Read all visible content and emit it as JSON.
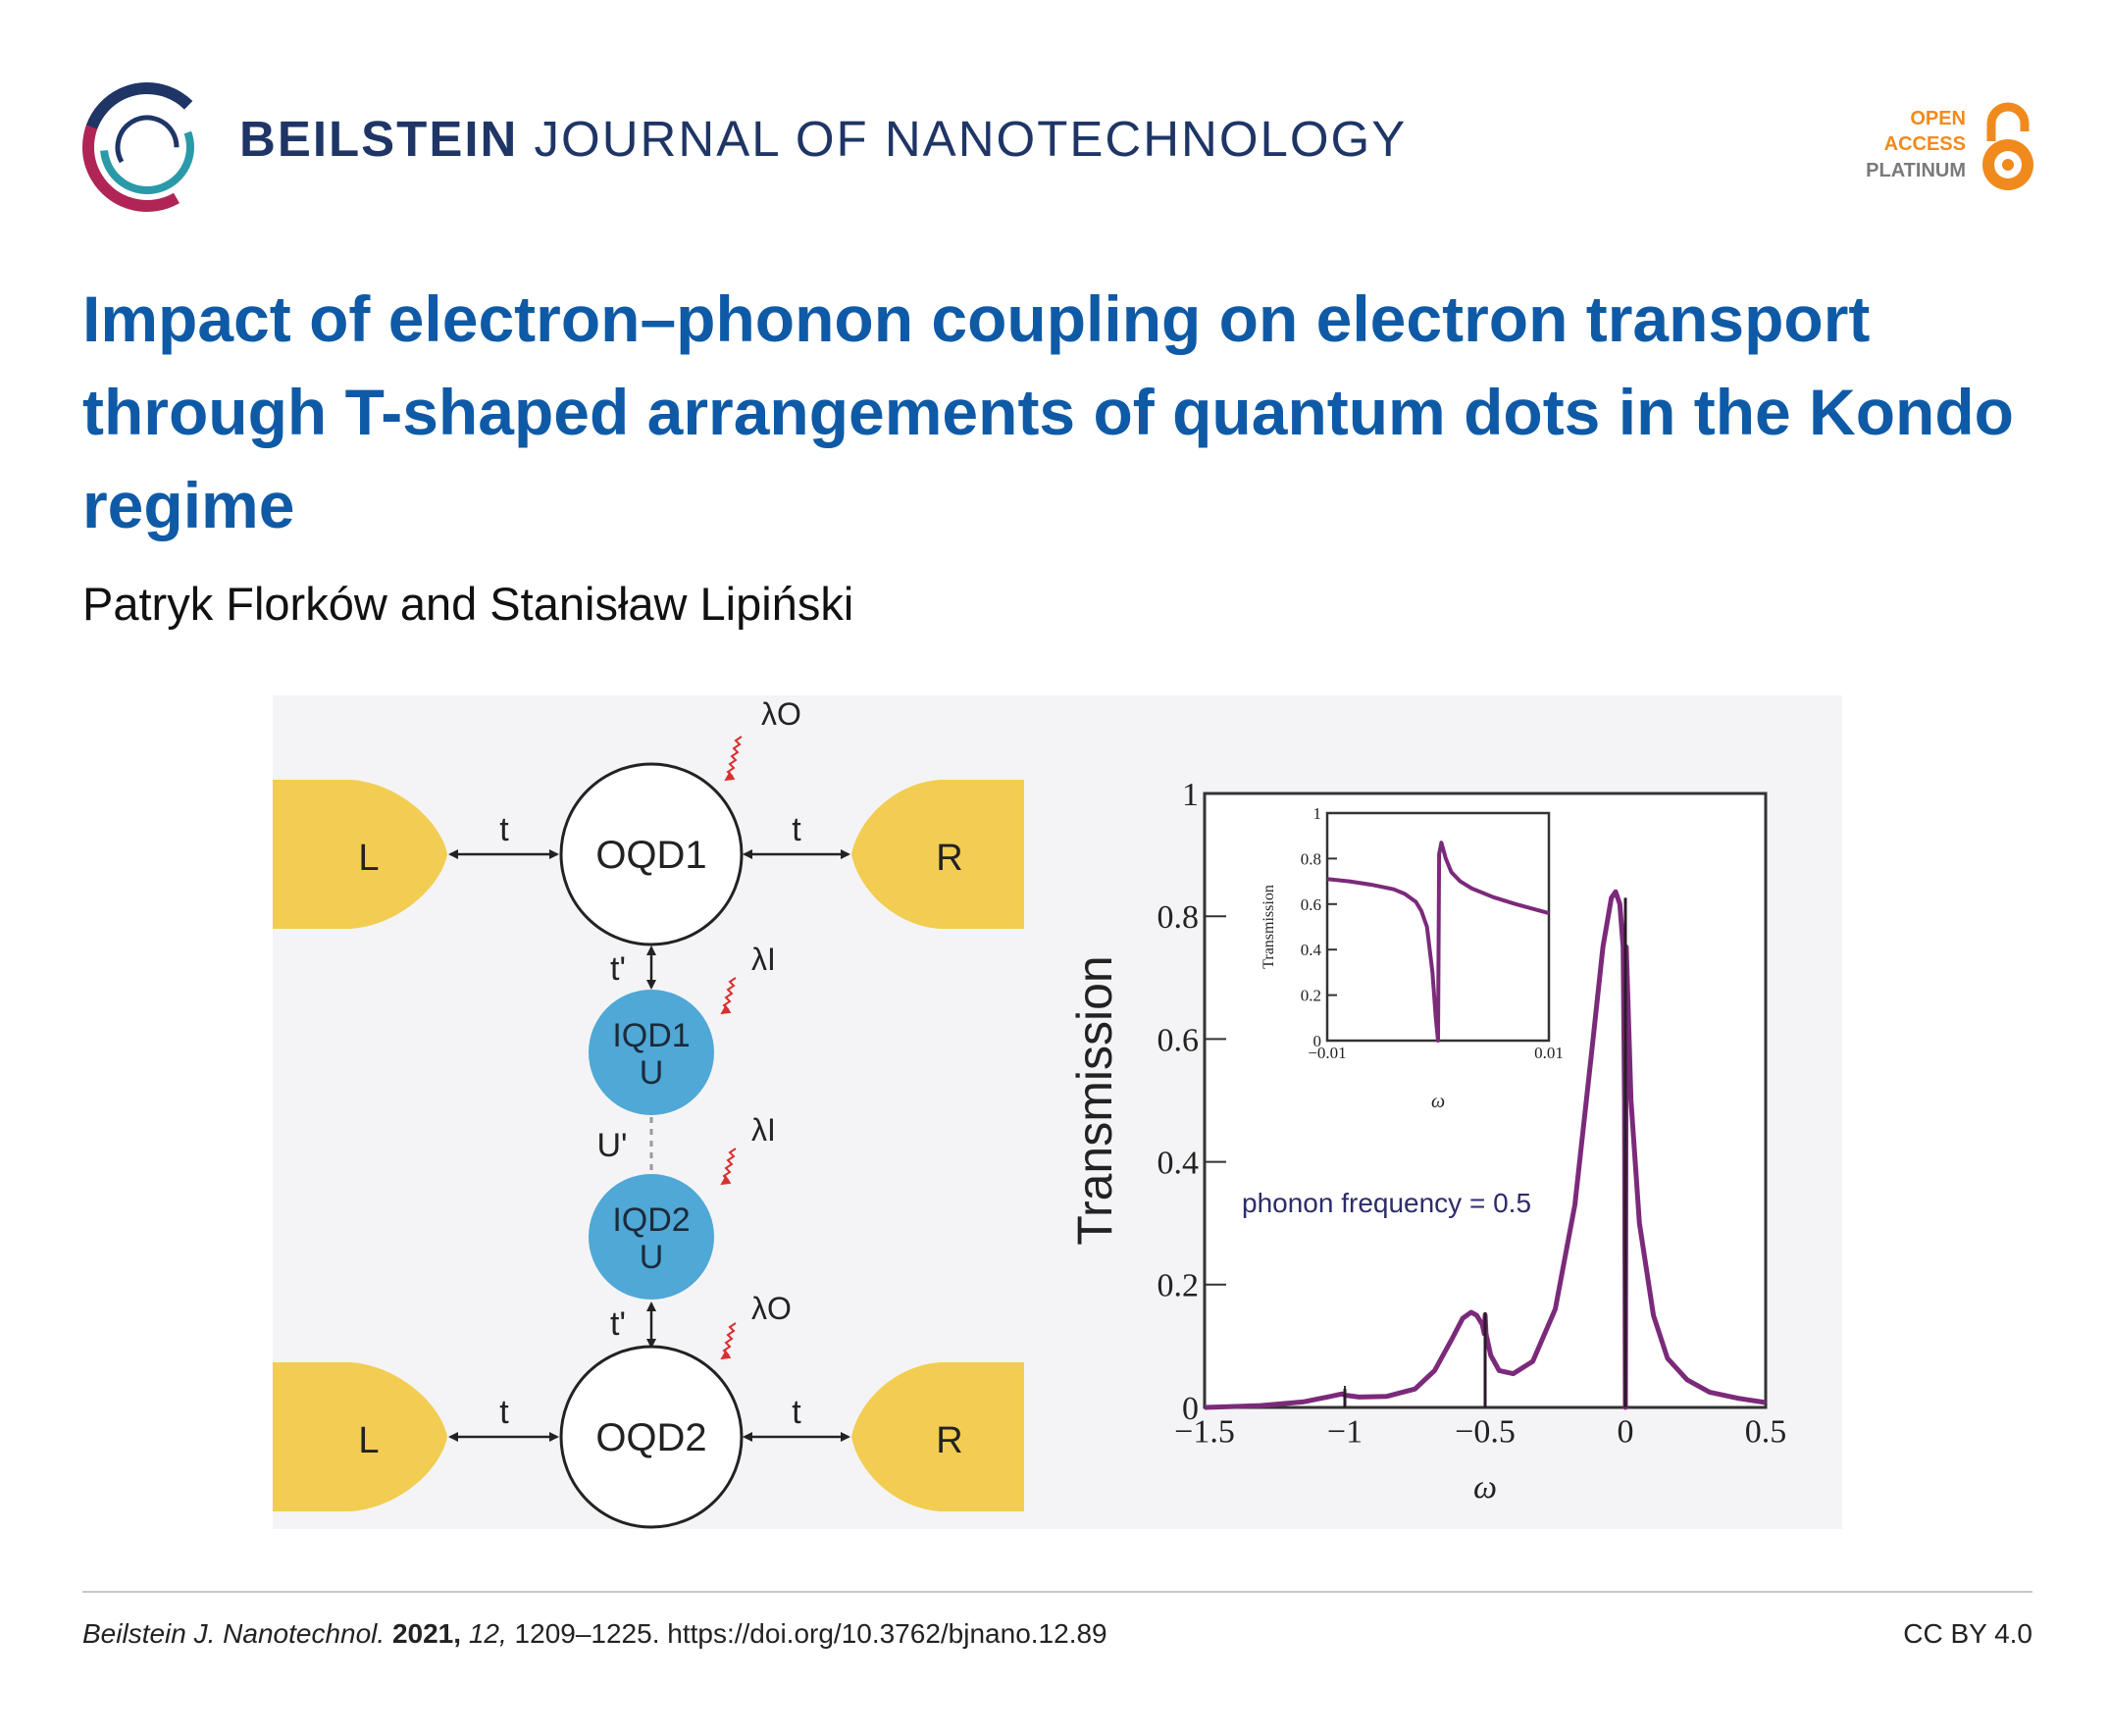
{
  "header": {
    "journal_bold": "BEILSTEIN",
    "journal_rest": "JOURNAL OF NANOTECHNOLOGY",
    "oa_line1": "OPEN",
    "oa_line2": "ACCESS",
    "oa_line3": "PLATINUM",
    "colors": {
      "navy": "#1e3566",
      "title_blue": "#0f5aa6",
      "orange": "#f08a1d"
    }
  },
  "article": {
    "title": "Impact of electron–phonon coupling on electron transport through T-shaped arrangements of quantum dots in the Kondo regime",
    "authors": "Patryk Florków and Stanisław Lipiński"
  },
  "figure": {
    "diagram": {
      "lead_left": "L",
      "lead_right": "R",
      "outer_dot_1": "OQD1",
      "outer_dot_2": "OQD2",
      "inner_dot_1": "IQD1",
      "inner_dot_2": "IQD2",
      "inner_u": "U",
      "inter_u": "U'",
      "hop_t": "t",
      "hop_tp": "t'",
      "lambda_o": "λO",
      "lambda_i": "λI"
    },
    "chart": {
      "ylabel": "Transmission",
      "xlabel": "ω",
      "xticks": [
        "−1.5",
        "−1",
        "−0.5",
        "0",
        "0.5"
      ],
      "yticks": [
        "0",
        "0.2",
        "0.4",
        "0.6",
        "0.8",
        "1"
      ],
      "annotation": "phonon frequency = 0.5",
      "inset": {
        "ylabel": "Transmission",
        "xlabel": "ω",
        "xticks": [
          "−0.01",
          "0.01"
        ],
        "yticks": [
          "0",
          "0.2",
          "0.4",
          "0.6",
          "0.8",
          "1"
        ]
      }
    }
  },
  "chart_data": [
    {
      "type": "line",
      "xlabel": "ω",
      "ylabel": "Transmission",
      "xlim": [
        -1.5,
        0.5
      ],
      "ylim": [
        0,
        1
      ],
      "annotations": [
        "phonon frequency = 0.5"
      ],
      "line_color": "#7b2a7a",
      "series": [
        {
          "x": [
            -1.5,
            -1.3,
            -1.15,
            -1.05,
            -1.01,
            -1.0,
            -0.95,
            -0.85,
            -0.75,
            -0.68,
            -0.62,
            -0.58,
            -0.55,
            -0.53,
            -0.51,
            -0.503,
            -0.5,
            -0.497,
            -0.48,
            -0.45,
            -0.4,
            -0.33,
            -0.25,
            -0.18,
            -0.12,
            -0.08,
            -0.05,
            -0.035,
            -0.02,
            -0.008,
            -0.003,
            0.0,
            0.003,
            0.02,
            0.05,
            0.1,
            0.15,
            0.22,
            0.3,
            0.4,
            0.5
          ],
          "y": [
            0.0,
            0.003,
            0.009,
            0.018,
            0.022,
            0.02,
            0.017,
            0.018,
            0.03,
            0.06,
            0.11,
            0.145,
            0.155,
            0.15,
            0.135,
            0.12,
            0.15,
            0.12,
            0.085,
            0.06,
            0.055,
            0.075,
            0.16,
            0.33,
            0.58,
            0.75,
            0.83,
            0.84,
            0.82,
            0.75,
            0.5,
            0.0,
            0.75,
            0.5,
            0.3,
            0.15,
            0.08,
            0.045,
            0.025,
            0.015,
            0.008
          ]
        }
      ]
    },
    {
      "type": "line",
      "xlabel": "ω",
      "ylabel": "Transmission",
      "xlim": [
        -0.01,
        0.01
      ],
      "ylim": [
        0,
        1
      ],
      "line_color": "#7b2a7a",
      "series": [
        {
          "x": [
            -0.01,
            -0.008,
            -0.006,
            -0.004,
            -0.003,
            -0.002,
            -0.0015,
            -0.001,
            -0.0005,
            -0.0002,
            0.0,
            0.0001,
            0.0003,
            0.0007,
            0.0012,
            0.002,
            0.003,
            0.005,
            0.007,
            0.01
          ],
          "y": [
            0.71,
            0.7,
            0.685,
            0.665,
            0.645,
            0.61,
            0.57,
            0.5,
            0.3,
            0.1,
            0.0,
            0.82,
            0.87,
            0.8,
            0.74,
            0.7,
            0.67,
            0.63,
            0.6,
            0.56
          ]
        }
      ]
    }
  ],
  "footer": {
    "journal_abbrev": "Beilstein J. Nanotechnol.",
    "year": "2021,",
    "volume": "12,",
    "pages_doi": "1209–1225. https://doi.org/10.3762/bjnano.12.89",
    "license": "CC BY 4.0"
  }
}
